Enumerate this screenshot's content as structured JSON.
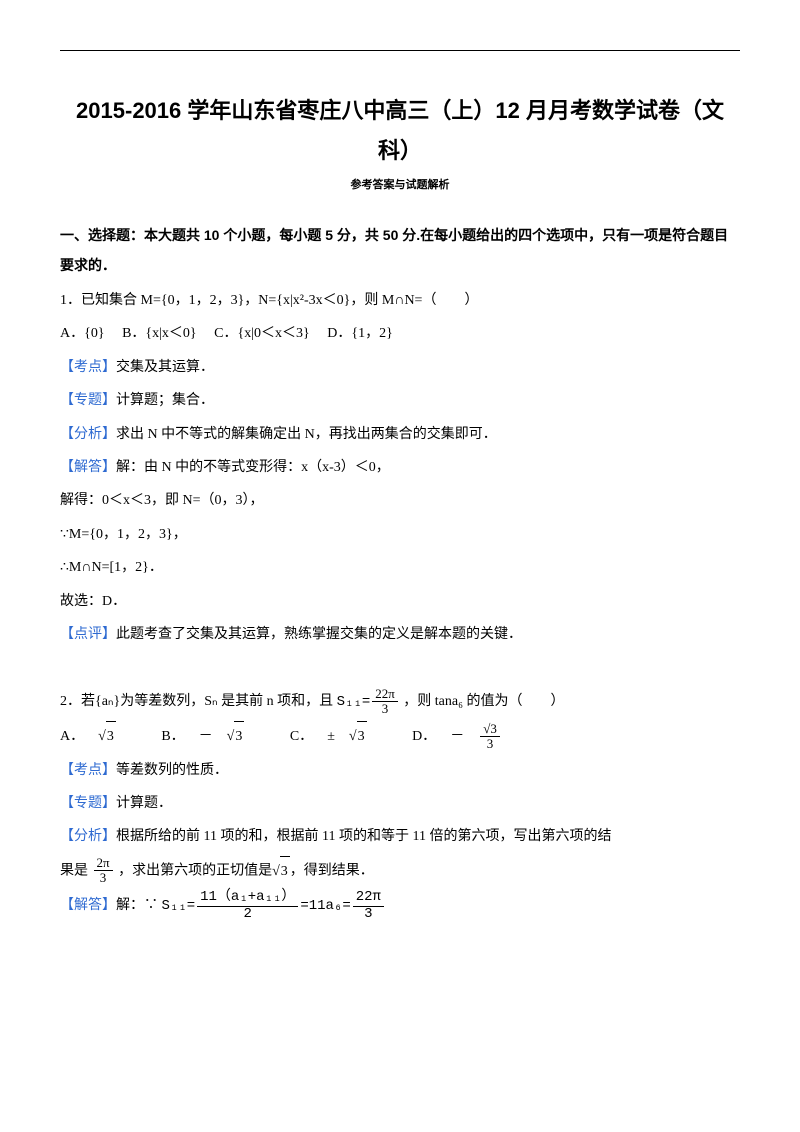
{
  "title": "2015-2016 学年山东省枣庄八中高三（上）12 月月考数学试卷（文科）",
  "subtitle": "参考答案与试题解析",
  "section1_header": "一、选择题：本大题共 10 个小题，每小题 5 分，共 50 分.在每小题给出的四个选项中，只有一项是符合题目要求的．",
  "q1": {
    "stem": "1．已知集合 M={0，1，2，3}，N={x|x²-3x＜0}，则 M∩N=（　　）",
    "A": "A．{0}",
    "B": "B．{x|x＜0}",
    "C": "C．{x|0＜x＜3}",
    "D": "D．{1，2}",
    "kaodian_label": "【考点】",
    "kaodian": "交集及其运算．",
    "zhuanti_label": "【专题】",
    "zhuanti": "计算题；集合．",
    "fenxi_label": "【分析】",
    "fenxi": "求出 N 中不等式的解集确定出 N，再找出两集合的交集即可．",
    "jieda_label": "【解答】",
    "jieda_pre": "解：由 N 中的不等式变形得：x（x-3）＜0，",
    "step1": "解得：0＜x＜3，即 N=（0，3），",
    "step2": "∵M={0，1，2，3}，",
    "step3": "∴M∩N=[1，2}．",
    "step4": "故选：D．",
    "dianping_label": "【点评】",
    "dianping": "此题考查了交集及其运算，熟练掌握交集的定义是解本题的关键．"
  },
  "q2": {
    "stem_a": "2．若{aₙ}为等差数列，Sₙ 是其前 n 项和，且",
    "stem_b": "，则 tana₆ 的值为（　　）",
    "frac1_num": "22π",
    "frac1_den": "3",
    "s11": "S₁₁=",
    "A": "A．",
    "B": "B．",
    "C": "C．",
    "D": "D．",
    "neg": "－",
    "pm": "±",
    "sqrt3": "3",
    "optD_num": "√3",
    "optD_den": "3",
    "kaodian_label": "【考点】",
    "kaodian": "等差数列的性质．",
    "zhuanti_label": "【专题】",
    "zhuanti": "计算题．",
    "fenxi_label": "【分析】",
    "fenxi_a": "根据所给的前 11 项的和，根据前 11 项的和等于 11 倍的第六项，写出第六项的结",
    "fenxi_b": "果是",
    "fenxi_c": "，求出第六项的正切值是",
    "fenxi_d": "，得到结果．",
    "frac2_num": "2π",
    "frac2_den": "3",
    "jieda_label": "【解答】",
    "jieda_pre": "解：∵",
    "formula_a": "S₁₁=",
    "formula_num": "11（a₁+a₁₁）",
    "formula_den": "2",
    "formula_b": "=11a₆=",
    "formula_c_num": "22π",
    "formula_c_den": "3"
  }
}
